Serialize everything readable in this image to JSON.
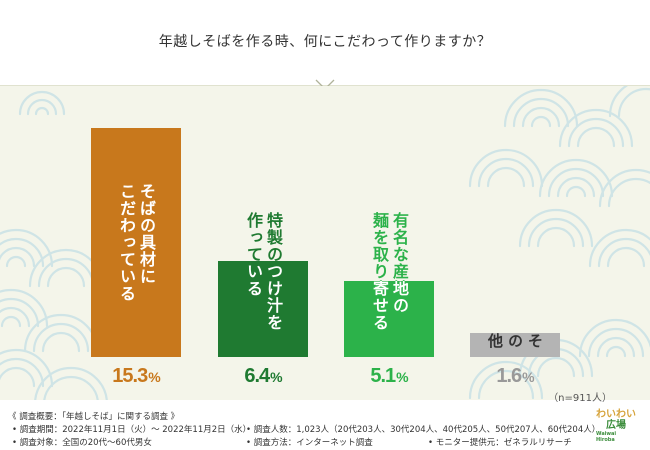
{
  "header": {
    "title": "年越しそばを作る時、何にこだわって作りますか？"
  },
  "chart_data": {
    "type": "bar",
    "title": "年越しそばを作る時、何にこだわって作りますか？",
    "categories": [
      "そばの具材にこだわっている",
      "特製のつけ汁を作っている",
      "有名な産地の麺を取り寄せる",
      "その他"
    ],
    "values": [
      15.3,
      6.4,
      5.1,
      1.6
    ],
    "unit": "%",
    "ylim": [
      0,
      16.5
    ],
    "colors": [
      "#c8781c",
      "#1f7a31",
      "#2cb24a",
      "#b4b4b4"
    ],
    "value_colors": [
      "#c8781c",
      "#1f7a31",
      "#2cb24a",
      "#999999"
    ],
    "bars": [
      {
        "label": "そばの具材に\nこだわっている",
        "value_text": "15.3",
        "pct": "%"
      },
      {
        "label": "特製のつけ汁を\n作っている",
        "value_text": "6.4",
        "pct": "%"
      },
      {
        "label": "有名な産地の\n麺を取り寄せる",
        "value_text": "5.1",
        "pct": "%"
      },
      {
        "label": "その他",
        "value_text": "1.6",
        "pct": "%"
      }
    ],
    "sample_note": "（n=911人）"
  },
  "footer": {
    "heading": "《 調査概要：「年越しそば」に関する調査 》",
    "period": "• 調査期間：2022年11月1日（火）～ 2022年11月2日（水）",
    "target": "• 調査対象：全国の20代～60代男女",
    "count": "• 調査人数：1,023人（20代203人、30代204人、40代205人、50代207人、60代204人）",
    "method": "• 調査方法：インターネット調査",
    "provider": "• モニター提供元：ゼネラルリサーチ"
  },
  "logo": {
    "line1": "わいわい",
    "line2": "広場",
    "line3": "Waiwai Hiroba"
  }
}
